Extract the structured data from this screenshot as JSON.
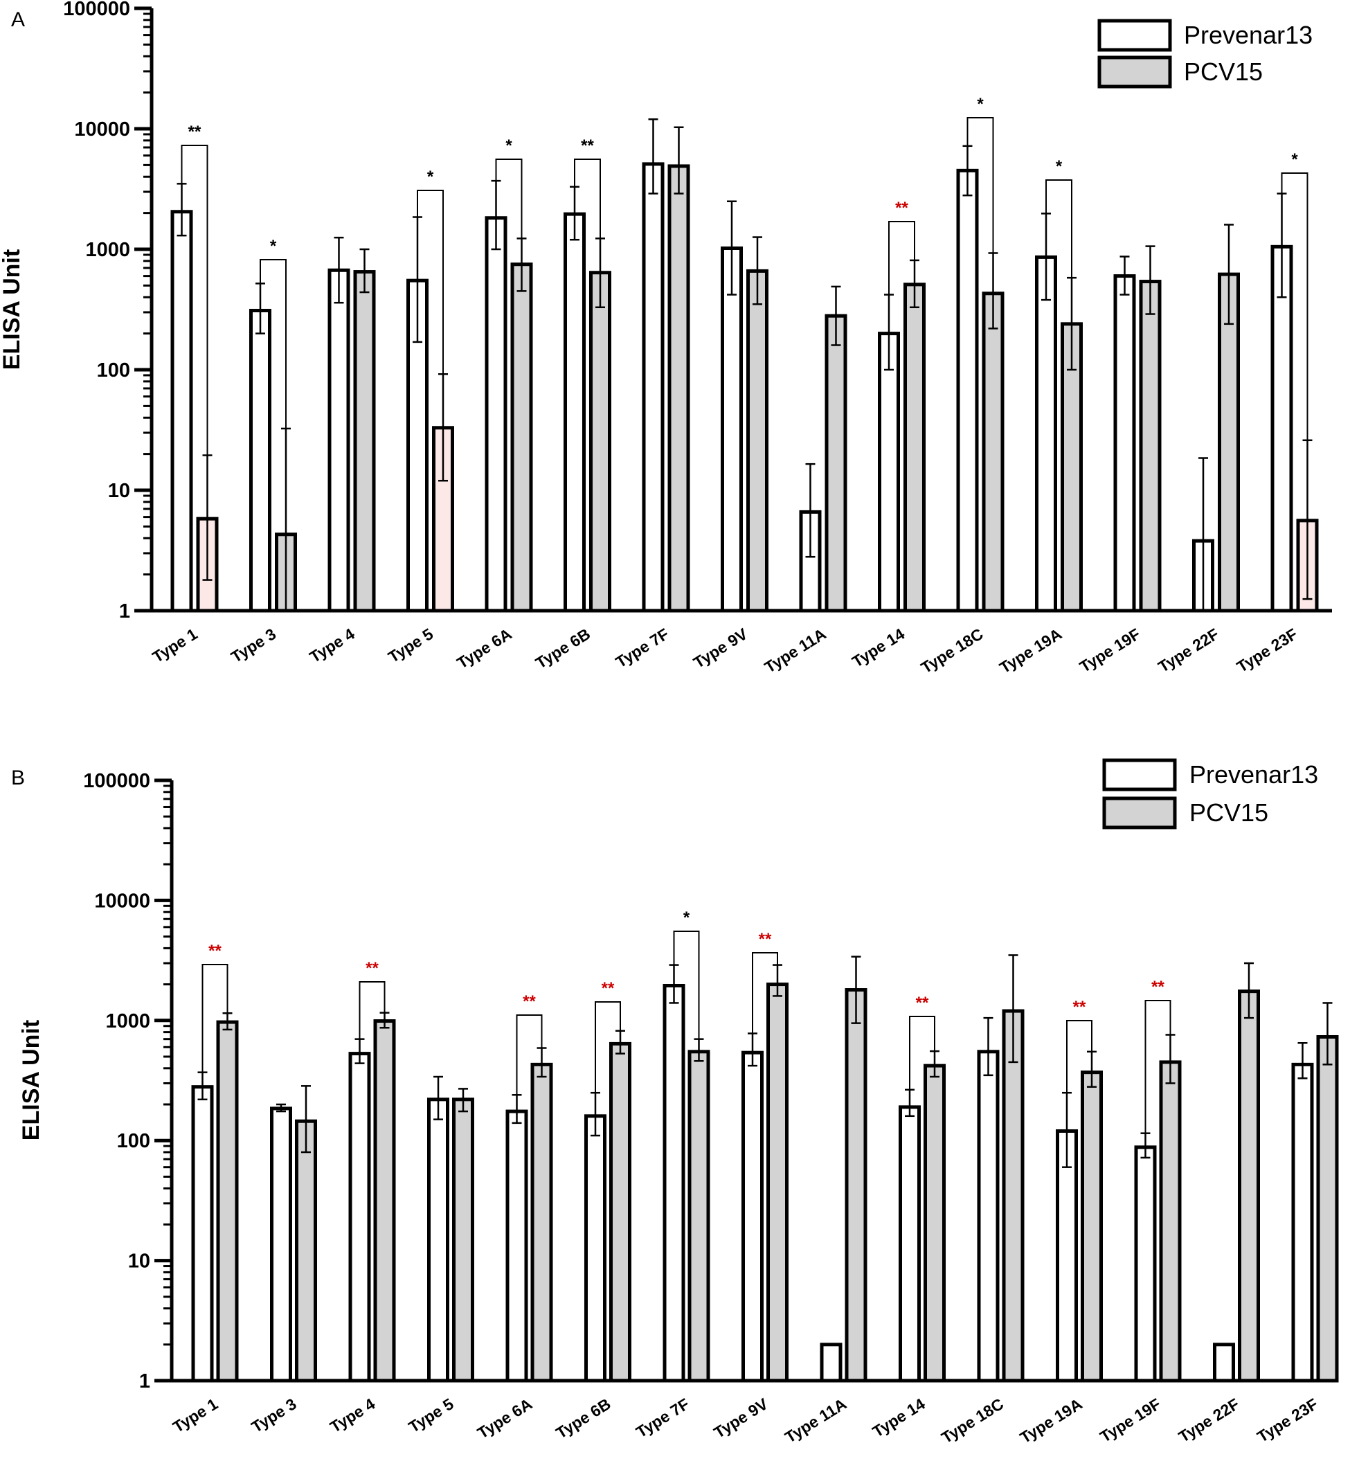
{
  "colors": {
    "prevenar_fill": "#ffffff",
    "pcv15_fill": "#d3d3d3",
    "pink_fill": "#fde8e8",
    "stroke": "#000000",
    "sig_black": "#000000",
    "sig_red": "#cc0000"
  },
  "legend": {
    "prevenar": "Prevenar13",
    "pcv15": "PCV15"
  },
  "chart_data": [
    {
      "type": "bar",
      "panel_label": "A",
      "ylabel": "ELISA Unit",
      "yscale": "log",
      "ylim": [
        1,
        100000
      ],
      "yticks": [
        "1",
        "10",
        "100",
        "1000",
        "10000",
        "100000"
      ],
      "legend_position": "top-right",
      "categories": [
        "Type 1",
        "Type 3",
        "Type 4",
        "Type 5",
        "Type 6A",
        "Type 6B",
        "Type 7F",
        "Type 9V",
        "Type 11A",
        "Type 14",
        "Type 18C",
        "Type 19A",
        "Type 19F",
        "Type 22F",
        "Type 23F"
      ],
      "series": [
        {
          "name": "Prevenar13",
          "values": [
            2050,
            310,
            670,
            550,
            1820,
            1960,
            5100,
            1020,
            6.6,
            200,
            4500,
            860,
            600,
            3.8,
            1050
          ],
          "err_low": [
            1300,
            200,
            360,
            170,
            1000,
            1200,
            2900,
            420,
            2.8,
            100,
            2800,
            380,
            420,
            1,
            400
          ],
          "err_high": [
            3500,
            520,
            1250,
            1850,
            3700,
            3300,
            12000,
            2500,
            16.5,
            420,
            7200,
            1980,
            870,
            18.5,
            2900
          ]
        },
        {
          "name": "PCV15",
          "values": [
            5.8,
            4.3,
            650,
            33,
            750,
            640,
            4900,
            660,
            280,
            510,
            430,
            240,
            540,
            620,
            5.6
          ],
          "err_low": [
            1.8,
            1,
            440,
            12,
            450,
            330,
            2900,
            350,
            160,
            330,
            220,
            100,
            290,
            240,
            1.25
          ],
          "err_high": [
            19.5,
            32.5,
            1000,
            92,
            1230,
            1230,
            10300,
            1260,
            490,
            810,
            930,
            580,
            1060,
            1600,
            26
          ],
          "pink": [
            0,
            14
          ],
          "pink_extra": [
            3
          ]
        }
      ],
      "significance": [
        {
          "category": "Type 1",
          "label": "**",
          "color": "black"
        },
        {
          "category": "Type 3",
          "label": "*",
          "color": "black"
        },
        {
          "category": "Type 5",
          "label": "*",
          "color": "black"
        },
        {
          "category": "Type 6A",
          "label": "*",
          "color": "black"
        },
        {
          "category": "Type 6B",
          "label": "**",
          "color": "black"
        },
        {
          "category": "Type 14",
          "label": "**",
          "color": "red"
        },
        {
          "category": "Type 18C",
          "label": "*",
          "color": "black"
        },
        {
          "category": "Type 19A",
          "label": "*",
          "color": "black"
        },
        {
          "category": "Type 23F",
          "label": "*",
          "color": "black"
        }
      ]
    },
    {
      "type": "bar",
      "panel_label": "B",
      "ylabel": "ELISA Unit",
      "yscale": "log",
      "ylim": [
        1,
        100000
      ],
      "yticks": [
        "1",
        "10",
        "100",
        "1000",
        "10000",
        "100000"
      ],
      "legend_position": "top-right",
      "categories": [
        "Type 1",
        "Type 3",
        "Type 4",
        "Type 5",
        "Type 6A",
        "Type 6B",
        "Type 7F",
        "Type 9V",
        "Type 11A",
        "Type 14",
        "Type 18C",
        "Type 19A",
        "Type 19F",
        "Type 22F",
        "Type 23F"
      ],
      "series": [
        {
          "name": "Prevenar13",
          "values": [
            280,
            185,
            530,
            220,
            175,
            160,
            1950,
            540,
            2,
            190,
            550,
            120,
            88,
            2,
            430
          ],
          "err_low": [
            220,
            175,
            440,
            150,
            140,
            110,
            1400,
            420,
            2,
            160,
            350,
            60,
            72,
            2,
            330
          ],
          "err_high": [
            370,
            200,
            700,
            340,
            240,
            250,
            2900,
            780,
            2,
            265,
            1050,
            250,
            115,
            2,
            650
          ]
        },
        {
          "name": "PCV15",
          "values": [
            970,
            145,
            990,
            220,
            430,
            640,
            550,
            2000,
            1800,
            420,
            1200,
            370,
            450,
            1750,
            730
          ],
          "err_low": [
            840,
            80,
            870,
            175,
            340,
            530,
            460,
            1600,
            950,
            340,
            450,
            280,
            300,
            1050,
            430
          ],
          "err_high": [
            1150,
            285,
            1160,
            270,
            590,
            820,
            700,
            2900,
            3400,
            555,
            3500,
            550,
            760,
            3000,
            1400
          ]
        }
      ],
      "significance": [
        {
          "category": "Type 1",
          "label": "**",
          "color": "red"
        },
        {
          "category": "Type 4",
          "label": "**",
          "color": "red"
        },
        {
          "category": "Type 6A",
          "label": "**",
          "color": "red"
        },
        {
          "category": "Type 6B",
          "label": "**",
          "color": "red"
        },
        {
          "category": "Type 7F",
          "label": "*",
          "color": "black"
        },
        {
          "category": "Type 9V",
          "label": "**",
          "color": "red"
        },
        {
          "category": "Type 14",
          "label": "**",
          "color": "red"
        },
        {
          "category": "Type 19A",
          "label": "**",
          "color": "red"
        },
        {
          "category": "Type 19F",
          "label": "**",
          "color": "red"
        }
      ]
    }
  ]
}
